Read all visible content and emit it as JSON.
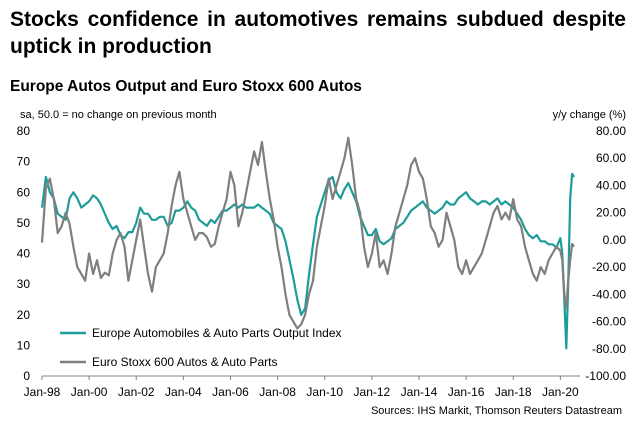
{
  "headline": "Stocks confidence in automotives remains subdued despite uptick in production",
  "chart_data": {
    "type": "line",
    "title": "Europe Autos Output and Euro Stoxx 600 Autos",
    "left_axis_note": "sa, 50.0 = no change on previous month",
    "right_axis_note": "y/y change (%)",
    "source": "Sources: IHS Markit, Thomson Reuters Datastream",
    "colors": {
      "output": "#1e9c9a",
      "stoxx": "#7f7f7f"
    },
    "x_ticks": [
      "Jan-98",
      "Jan-00",
      "Jan-02",
      "Jan-04",
      "Jan-06",
      "Jan-08",
      "Jan-10",
      "Jan-12",
      "Jan-14",
      "Jan-16",
      "Jan-18",
      "Jan-20"
    ],
    "y_left": {
      "ticks": [
        "0",
        "10",
        "20",
        "30",
        "40",
        "50",
        "60",
        "70",
        "80"
      ],
      "range": [
        0,
        80
      ]
    },
    "y_right": {
      "ticks": [
        "-100.00",
        "-80.00",
        "-60.00",
        "-40.00",
        "-20.00",
        "0.00",
        "20.00",
        "40.00",
        "60.00",
        "80.00"
      ],
      "range": [
        -100,
        80
      ]
    },
    "legend_placement": "bottom-left",
    "series": [
      {
        "name": "Europe Automobiles & Auto Parts Output Index",
        "axis": "left",
        "color": "#1e9c9a",
        "points": [
          [
            "1998-01",
            55
          ],
          [
            "1998-03",
            65
          ],
          [
            "1998-05",
            60
          ],
          [
            "1998-07",
            58
          ],
          [
            "1998-09",
            53
          ],
          [
            "1998-11",
            52
          ],
          [
            "1999-01",
            51
          ],
          [
            "1999-03",
            58
          ],
          [
            "1999-05",
            60
          ],
          [
            "1999-07",
            58
          ],
          [
            "1999-09",
            55
          ],
          [
            "1999-11",
            56
          ],
          [
            "2000-01",
            57
          ],
          [
            "2000-03",
            59
          ],
          [
            "2000-05",
            58
          ],
          [
            "2000-07",
            56
          ],
          [
            "2000-09",
            53
          ],
          [
            "2000-11",
            50
          ],
          [
            "2001-01",
            48
          ],
          [
            "2001-03",
            49
          ],
          [
            "2001-05",
            46
          ],
          [
            "2001-07",
            45
          ],
          [
            "2001-09",
            47
          ],
          [
            "2001-11",
            47
          ],
          [
            "2002-01",
            50
          ],
          [
            "2002-03",
            55
          ],
          [
            "2002-05",
            53
          ],
          [
            "2002-07",
            53
          ],
          [
            "2002-09",
            51
          ],
          [
            "2002-11",
            51
          ],
          [
            "2003-01",
            52
          ],
          [
            "2003-03",
            52
          ],
          [
            "2003-05",
            49
          ],
          [
            "2003-07",
            50
          ],
          [
            "2003-09",
            54
          ],
          [
            "2003-11",
            54
          ],
          [
            "2004-01",
            55
          ],
          [
            "2004-03",
            57
          ],
          [
            "2004-05",
            55
          ],
          [
            "2004-07",
            54
          ],
          [
            "2004-09",
            51
          ],
          [
            "2004-11",
            50
          ],
          [
            "2005-01",
            49
          ],
          [
            "2005-03",
            51
          ],
          [
            "2005-05",
            50
          ],
          [
            "2005-07",
            52
          ],
          [
            "2005-09",
            54
          ],
          [
            "2005-11",
            54
          ],
          [
            "2006-01",
            55
          ],
          [
            "2006-03",
            56
          ],
          [
            "2006-05",
            55
          ],
          [
            "2006-07",
            56
          ],
          [
            "2006-09",
            55
          ],
          [
            "2006-11",
            55
          ],
          [
            "2007-01",
            55
          ],
          [
            "2007-03",
            56
          ],
          [
            "2007-05",
            55
          ],
          [
            "2007-07",
            54
          ],
          [
            "2007-09",
            53
          ],
          [
            "2007-11",
            50
          ],
          [
            "2008-01",
            49
          ],
          [
            "2008-03",
            48
          ],
          [
            "2008-05",
            44
          ],
          [
            "2008-07",
            38
          ],
          [
            "2008-09",
            32
          ],
          [
            "2008-11",
            25
          ],
          [
            "2009-01",
            20
          ],
          [
            "2009-03",
            22
          ],
          [
            "2009-05",
            33
          ],
          [
            "2009-07",
            43
          ],
          [
            "2009-09",
            52
          ],
          [
            "2009-11",
            56
          ],
          [
            "2010-01",
            60
          ],
          [
            "2010-03",
            64
          ],
          [
            "2010-05",
            65
          ],
          [
            "2010-07",
            60
          ],
          [
            "2010-09",
            58
          ],
          [
            "2010-11",
            61
          ],
          [
            "2011-01",
            63
          ],
          [
            "2011-03",
            60
          ],
          [
            "2011-05",
            57
          ],
          [
            "2011-07",
            52
          ],
          [
            "2011-09",
            49
          ],
          [
            "2011-11",
            46
          ],
          [
            "2012-01",
            46
          ],
          [
            "2012-03",
            48
          ],
          [
            "2012-05",
            44
          ],
          [
            "2012-07",
            43
          ],
          [
            "2012-09",
            44
          ],
          [
            "2012-11",
            45
          ],
          [
            "2013-01",
            48
          ],
          [
            "2013-03",
            49
          ],
          [
            "2013-05",
            50
          ],
          [
            "2013-07",
            52
          ],
          [
            "2013-09",
            54
          ],
          [
            "2013-11",
            55
          ],
          [
            "2014-01",
            56
          ],
          [
            "2014-03",
            57
          ],
          [
            "2014-05",
            55
          ],
          [
            "2014-07",
            54
          ],
          [
            "2014-09",
            53
          ],
          [
            "2014-11",
            54
          ],
          [
            "2015-01",
            55
          ],
          [
            "2015-03",
            57
          ],
          [
            "2015-05",
            56
          ],
          [
            "2015-07",
            56
          ],
          [
            "2015-09",
            58
          ],
          [
            "2015-11",
            59
          ],
          [
            "2016-01",
            60
          ],
          [
            "2016-03",
            58
          ],
          [
            "2016-05",
            57
          ],
          [
            "2016-07",
            56
          ],
          [
            "2016-09",
            57
          ],
          [
            "2016-11",
            57
          ],
          [
            "2017-01",
            56
          ],
          [
            "2017-03",
            57
          ],
          [
            "2017-05",
            58
          ],
          [
            "2017-07",
            56
          ],
          [
            "2017-09",
            57
          ],
          [
            "2017-11",
            56
          ],
          [
            "2018-01",
            55
          ],
          [
            "2018-03",
            53
          ],
          [
            "2018-05",
            51
          ],
          [
            "2018-07",
            48
          ],
          [
            "2018-09",
            46
          ],
          [
            "2018-11",
            45
          ],
          [
            "2019-01",
            46
          ],
          [
            "2019-03",
            44
          ],
          [
            "2019-05",
            44
          ],
          [
            "2019-07",
            43
          ],
          [
            "2019-09",
            43
          ],
          [
            "2019-11",
            42
          ],
          [
            "2020-01",
            45
          ],
          [
            "2020-02",
            40
          ],
          [
            "2020-03",
            25
          ],
          [
            "2020-04",
            9
          ],
          [
            "2020-05",
            30
          ],
          [
            "2020-06",
            58
          ],
          [
            "2020-07",
            66
          ],
          [
            "2020-08",
            65
          ]
        ]
      },
      {
        "name": "Euro Stoxx 600 Autos & Auto Parts",
        "axis": "right",
        "color": "#7f7f7f",
        "points": [
          [
            "1998-01",
            -2
          ],
          [
            "1998-03",
            38
          ],
          [
            "1998-05",
            45
          ],
          [
            "1998-07",
            30
          ],
          [
            "1998-09",
            5
          ],
          [
            "1998-11",
            10
          ],
          [
            "1999-01",
            20
          ],
          [
            "1999-03",
            12
          ],
          [
            "1999-05",
            -5
          ],
          [
            "1999-07",
            -20
          ],
          [
            "1999-09",
            -25
          ],
          [
            "1999-11",
            -30
          ],
          [
            "2000-01",
            -10
          ],
          [
            "2000-03",
            -25
          ],
          [
            "2000-05",
            -15
          ],
          [
            "2000-07",
            -28
          ],
          [
            "2000-09",
            -24
          ],
          [
            "2000-11",
            -26
          ],
          [
            "2001-01",
            -10
          ],
          [
            "2001-03",
            0
          ],
          [
            "2001-05",
            5
          ],
          [
            "2001-07",
            -5
          ],
          [
            "2001-09",
            -30
          ],
          [
            "2001-11",
            -15
          ],
          [
            "2002-01",
            0
          ],
          [
            "2002-03",
            15
          ],
          [
            "2002-05",
            -5
          ],
          [
            "2002-07",
            -25
          ],
          [
            "2002-09",
            -38
          ],
          [
            "2002-11",
            -20
          ],
          [
            "2003-01",
            -15
          ],
          [
            "2003-03",
            -10
          ],
          [
            "2003-05",
            5
          ],
          [
            "2003-07",
            25
          ],
          [
            "2003-09",
            40
          ],
          [
            "2003-11",
            50
          ],
          [
            "2004-01",
            30
          ],
          [
            "2004-03",
            20
          ],
          [
            "2004-05",
            10
          ],
          [
            "2004-07",
            0
          ],
          [
            "2004-09",
            5
          ],
          [
            "2004-11",
            5
          ],
          [
            "2005-01",
            2
          ],
          [
            "2005-03",
            -5
          ],
          [
            "2005-05",
            -3
          ],
          [
            "2005-07",
            10
          ],
          [
            "2005-09",
            20
          ],
          [
            "2005-11",
            30
          ],
          [
            "2006-01",
            50
          ],
          [
            "2006-03",
            40
          ],
          [
            "2006-05",
            10
          ],
          [
            "2006-07",
            20
          ],
          [
            "2006-09",
            35
          ],
          [
            "2006-11",
            50
          ],
          [
            "2007-01",
            65
          ],
          [
            "2007-03",
            55
          ],
          [
            "2007-05",
            72
          ],
          [
            "2007-07",
            50
          ],
          [
            "2007-09",
            30
          ],
          [
            "2007-11",
            15
          ],
          [
            "2008-01",
            -5
          ],
          [
            "2008-03",
            -20
          ],
          [
            "2008-05",
            -40
          ],
          [
            "2008-07",
            -55
          ],
          [
            "2008-09",
            -60
          ],
          [
            "2008-11",
            -65
          ],
          [
            "2009-01",
            -62
          ],
          [
            "2009-03",
            -55
          ],
          [
            "2009-05",
            -40
          ],
          [
            "2009-07",
            -30
          ],
          [
            "2009-09",
            -5
          ],
          [
            "2009-11",
            10
          ],
          [
            "2010-01",
            25
          ],
          [
            "2010-03",
            45
          ],
          [
            "2010-05",
            30
          ],
          [
            "2010-07",
            40
          ],
          [
            "2010-09",
            50
          ],
          [
            "2010-11",
            60
          ],
          [
            "2011-01",
            75
          ],
          [
            "2011-03",
            55
          ],
          [
            "2011-05",
            30
          ],
          [
            "2011-07",
            20
          ],
          [
            "2011-09",
            -5
          ],
          [
            "2011-11",
            -20
          ],
          [
            "2012-01",
            -10
          ],
          [
            "2012-03",
            5
          ],
          [
            "2012-05",
            -20
          ],
          [
            "2012-07",
            -15
          ],
          [
            "2012-09",
            -25
          ],
          [
            "2012-11",
            -10
          ],
          [
            "2013-01",
            10
          ],
          [
            "2013-03",
            20
          ],
          [
            "2013-05",
            30
          ],
          [
            "2013-07",
            40
          ],
          [
            "2013-09",
            55
          ],
          [
            "2013-11",
            60
          ],
          [
            "2014-01",
            50
          ],
          [
            "2014-03",
            45
          ],
          [
            "2014-05",
            30
          ],
          [
            "2014-07",
            10
          ],
          [
            "2014-09",
            5
          ],
          [
            "2014-11",
            -5
          ],
          [
            "2015-01",
            0
          ],
          [
            "2015-03",
            20
          ],
          [
            "2015-05",
            10
          ],
          [
            "2015-07",
            0
          ],
          [
            "2015-09",
            -20
          ],
          [
            "2015-11",
            -25
          ],
          [
            "2016-01",
            -15
          ],
          [
            "2016-03",
            -25
          ],
          [
            "2016-05",
            -20
          ],
          [
            "2016-07",
            -15
          ],
          [
            "2016-09",
            -10
          ],
          [
            "2016-11",
            0
          ],
          [
            "2017-01",
            10
          ],
          [
            "2017-03",
            20
          ],
          [
            "2017-05",
            25
          ],
          [
            "2017-07",
            15
          ],
          [
            "2017-09",
            20
          ],
          [
            "2017-11",
            15
          ],
          [
            "2018-01",
            30
          ],
          [
            "2018-03",
            15
          ],
          [
            "2018-05",
            10
          ],
          [
            "2018-07",
            -5
          ],
          [
            "2018-09",
            -15
          ],
          [
            "2018-11",
            -25
          ],
          [
            "2019-01",
            -30
          ],
          [
            "2019-03",
            -20
          ],
          [
            "2019-05",
            -25
          ],
          [
            "2019-07",
            -15
          ],
          [
            "2019-09",
            -10
          ],
          [
            "2019-11",
            -5
          ],
          [
            "2020-01",
            -8
          ],
          [
            "2020-02",
            -15
          ],
          [
            "2020-03",
            -40
          ],
          [
            "2020-04",
            -50
          ],
          [
            "2020-05",
            -30
          ],
          [
            "2020-06",
            -15
          ],
          [
            "2020-07",
            -3
          ],
          [
            "2020-08",
            -5
          ]
        ]
      }
    ]
  }
}
